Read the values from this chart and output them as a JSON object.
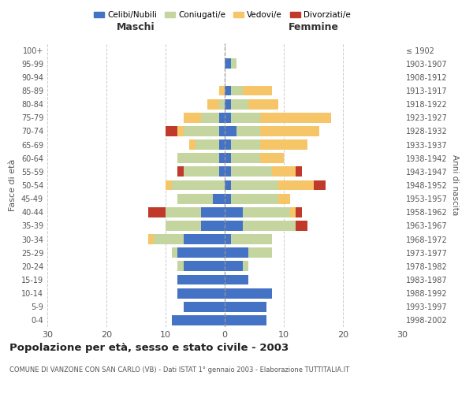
{
  "age_groups": [
    "0-4",
    "5-9",
    "10-14",
    "15-19",
    "20-24",
    "25-29",
    "30-34",
    "35-39",
    "40-44",
    "45-49",
    "50-54",
    "55-59",
    "60-64",
    "65-69",
    "70-74",
    "75-79",
    "80-84",
    "85-89",
    "90-94",
    "95-99",
    "100+"
  ],
  "birth_years": [
    "1998-2002",
    "1993-1997",
    "1988-1992",
    "1983-1987",
    "1978-1982",
    "1973-1977",
    "1968-1972",
    "1963-1967",
    "1958-1962",
    "1953-1957",
    "1948-1952",
    "1943-1947",
    "1938-1942",
    "1933-1937",
    "1928-1932",
    "1923-1927",
    "1918-1922",
    "1913-1917",
    "1908-1912",
    "1903-1907",
    "≤ 1902"
  ],
  "males": {
    "celibi": [
      9,
      7,
      8,
      8,
      7,
      8,
      7,
      4,
      4,
      2,
      0,
      1,
      1,
      1,
      1,
      1,
      0,
      0,
      0,
      0,
      0
    ],
    "coniugati": [
      0,
      0,
      0,
      0,
      1,
      1,
      5,
      6,
      6,
      6,
      9,
      6,
      7,
      4,
      6,
      3,
      1,
      0,
      0,
      0,
      0
    ],
    "vedovi": [
      0,
      0,
      0,
      0,
      0,
      0,
      1,
      0,
      0,
      0,
      1,
      0,
      0,
      1,
      1,
      3,
      2,
      1,
      0,
      0,
      0
    ],
    "divorziati": [
      0,
      0,
      0,
      0,
      0,
      0,
      0,
      0,
      3,
      0,
      0,
      1,
      0,
      0,
      2,
      0,
      0,
      0,
      0,
      0,
      0
    ]
  },
  "females": {
    "nubili": [
      7,
      7,
      8,
      4,
      3,
      4,
      1,
      3,
      3,
      1,
      1,
      1,
      1,
      1,
      2,
      1,
      1,
      1,
      0,
      1,
      0
    ],
    "coniugate": [
      0,
      0,
      0,
      0,
      1,
      4,
      7,
      9,
      8,
      8,
      8,
      7,
      5,
      5,
      4,
      5,
      3,
      2,
      0,
      1,
      0
    ],
    "vedove": [
      0,
      0,
      0,
      0,
      0,
      0,
      0,
      0,
      1,
      2,
      6,
      4,
      4,
      8,
      10,
      12,
      5,
      5,
      0,
      0,
      0
    ],
    "divorziate": [
      0,
      0,
      0,
      0,
      0,
      0,
      0,
      2,
      1,
      0,
      2,
      1,
      0,
      0,
      0,
      0,
      0,
      0,
      0,
      0,
      0
    ]
  },
  "colors": {
    "celibi_nubili": "#4472C4",
    "coniugati": "#C5D5A0",
    "vedovi": "#F5C567",
    "divorziati": "#C0392B"
  },
  "xlim": [
    -30,
    30
  ],
  "xticks": [
    -30,
    -20,
    -10,
    0,
    10,
    20,
    30
  ],
  "xticklabels": [
    "30",
    "20",
    "10",
    "0",
    "10",
    "20",
    "30"
  ],
  "title": "Popolazione per età, sesso e stato civile - 2003",
  "subtitle": "COMUNE DI VANZONE CON SAN CARLO (VB) - Dati ISTAT 1° gennaio 2003 - Elaborazione TUTTITALIA.IT",
  "ylabel": "Fasce di età",
  "right_ylabel": "Anni di nascita",
  "legend_labels": [
    "Celibi/Nubili",
    "Coniugati/e",
    "Vedovi/e",
    "Divorziati/e"
  ],
  "maschi_label": "Maschi",
  "femmine_label": "Femmine",
  "background_color": "#FFFFFF",
  "grid_color": "#CCCCCC"
}
